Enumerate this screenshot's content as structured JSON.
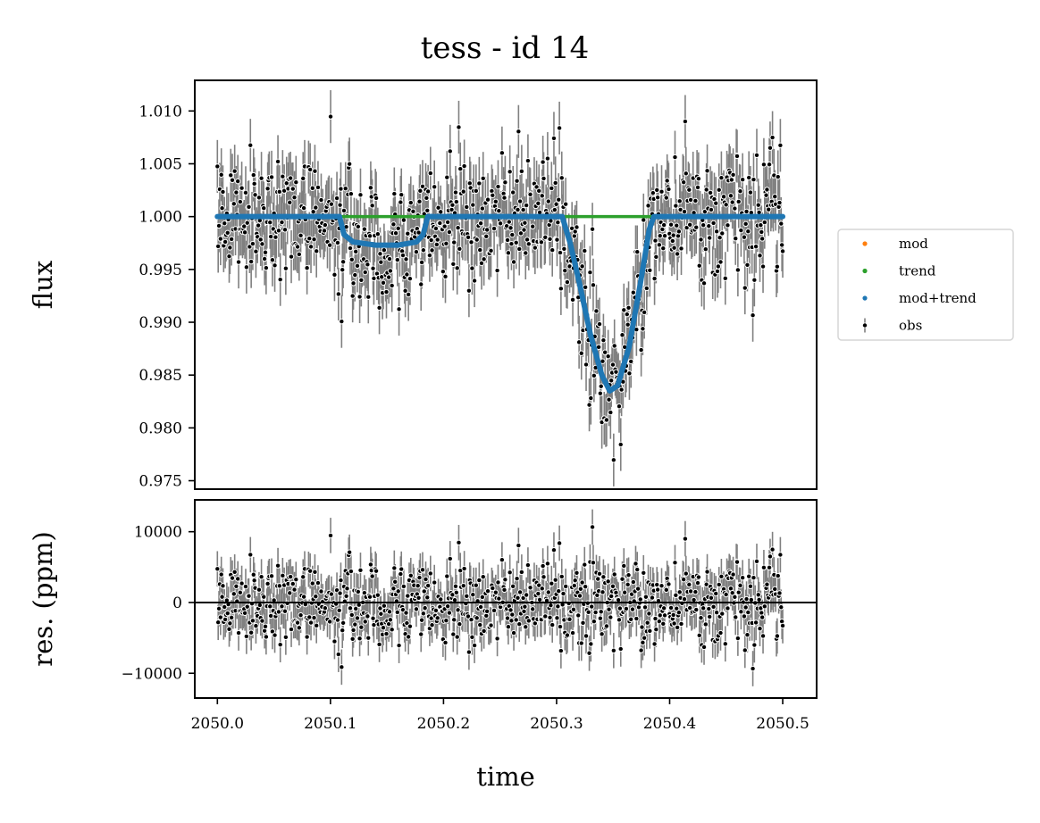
{
  "chart_data": [
    {
      "type": "scatter",
      "panel": "top",
      "title": "tess - id 14",
      "xlabel": "",
      "ylabel": "flux",
      "xlim": [
        2049.98,
        2050.53
      ],
      "ylim": [
        0.9742,
        1.0129
      ],
      "yticks": [
        0.975,
        0.98,
        0.985,
        0.99,
        0.995,
        1.0,
        1.005,
        1.01
      ],
      "ytick_labels": [
        "0.975",
        "0.980",
        "0.985",
        "0.990",
        "0.995",
        "1.000",
        "1.005",
        "1.010"
      ],
      "grid": false,
      "legend": {
        "placement": "right-outside",
        "entries": [
          {
            "name": "mod",
            "color": "#ff7f0e",
            "marker": "dot"
          },
          {
            "name": "trend",
            "color": "#2ca02c",
            "marker": "dot"
          },
          {
            "name": "mod+trend",
            "color": "#1f77b4",
            "marker": "dot"
          },
          {
            "name": "obs",
            "color": "#000000",
            "marker": "errorbar"
          }
        ]
      },
      "observations": {
        "x_range": [
          2050.0,
          2050.5
        ],
        "n_points": 720,
        "noise_sigma": 0.0028,
        "error_bar": 0.0025,
        "marker_color": "#000000",
        "marker_edge": "#ffffff",
        "errorbar_color": "#808080"
      },
      "series": [
        {
          "name": "trend",
          "color": "#2ca02c",
          "x": [
            2050.0,
            2050.5
          ],
          "y": [
            1.0,
            1.0
          ]
        },
        {
          "name": "mod+trend",
          "color": "#1f77b4",
          "x": [
            2050.0,
            2050.108,
            2050.112,
            2050.12,
            2050.14,
            2050.16,
            2050.176,
            2050.182,
            2050.186,
            2050.305,
            2050.312,
            2050.32,
            2050.33,
            2050.34,
            2050.347,
            2050.354,
            2050.364,
            2050.374,
            2050.382,
            2050.386,
            2050.5
          ],
          "y": [
            1.0,
            1.0,
            0.9983,
            0.9976,
            0.9973,
            0.9973,
            0.9976,
            0.9983,
            1.0,
            1.0,
            0.9975,
            0.9938,
            0.9888,
            0.985,
            0.9835,
            0.984,
            0.9876,
            0.9936,
            0.9988,
            1.0,
            1.0
          ]
        }
      ]
    },
    {
      "type": "scatter",
      "panel": "bottom",
      "xlabel": "time",
      "ylabel": "res. (ppm)",
      "xlim": [
        2049.98,
        2050.53
      ],
      "ylim": [
        -13500,
        14500
      ],
      "xticks": [
        2050.0,
        2050.1,
        2050.2,
        2050.3,
        2050.4,
        2050.5
      ],
      "xtick_labels": [
        "2050.0",
        "2050.1",
        "2050.2",
        "2050.3",
        "2050.4",
        "2050.5"
      ],
      "yticks": [
        -10000,
        0,
        10000
      ],
      "ytick_labels": [
        "−10000",
        "0",
        "10000"
      ],
      "grid": false,
      "reference_line_y": 0,
      "residuals": {
        "x_range": [
          2050.0,
          2050.5
        ],
        "n_points": 720,
        "noise_sigma_ppm": 2800,
        "error_bar_ppm": 2500
      }
    }
  ],
  "colors": {
    "trend": "#2ca02c",
    "model_trend": "#1f77b4",
    "model": "#ff7f0e",
    "observations": "#000000",
    "errorbars": "#808080"
  }
}
